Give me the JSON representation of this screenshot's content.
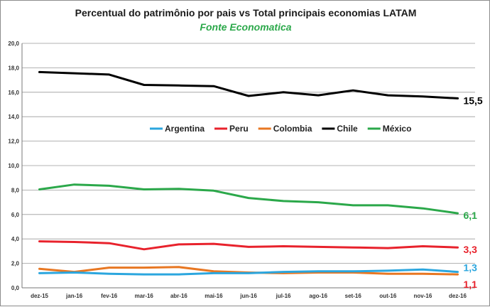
{
  "chart_data": {
    "type": "line",
    "title": "Percentual do patrimônio por pais vs Total  principais economias LATAM",
    "subtitle": "Fonte Economatica",
    "xlabel": "",
    "ylabel": "",
    "categories": [
      "dez-15",
      "jan-16",
      "fev-16",
      "mar-16",
      "abr-16",
      "mai-16",
      "jun-16",
      "jul-16",
      "ago-16",
      "set-16",
      "out-16",
      "nov-16",
      "dez-16"
    ],
    "ylim": [
      0,
      20
    ],
    "yticks": [
      "0,0",
      "2,0",
      "4,0",
      "6,0",
      "8,0",
      "10,0",
      "12,0",
      "14,0",
      "16,0",
      "18,0",
      "20,0"
    ],
    "grid": true,
    "legend_position": "center",
    "series": [
      {
        "name": "Argentina",
        "color": "#2ba6de",
        "values": [
          1.2,
          1.25,
          1.15,
          1.1,
          1.1,
          1.2,
          1.2,
          1.3,
          1.35,
          1.35,
          1.4,
          1.5,
          1.3
        ],
        "end_label": "1,3"
      },
      {
        "name": "Peru",
        "color": "#e8222c",
        "values": [
          3.8,
          3.75,
          3.65,
          3.15,
          3.55,
          3.6,
          3.35,
          3.4,
          3.35,
          3.3,
          3.25,
          3.4,
          3.3
        ],
        "end_label": "3,3"
      },
      {
        "name": "Colombia",
        "color": "#e87722",
        "values": [
          1.55,
          1.3,
          1.65,
          1.65,
          1.7,
          1.35,
          1.25,
          1.2,
          1.25,
          1.25,
          1.15,
          1.15,
          1.1
        ],
        "end_label": "1,1"
      },
      {
        "name": "Chile",
        "color": "#000000",
        "values": [
          17.65,
          17.55,
          17.45,
          16.6,
          16.55,
          16.5,
          15.7,
          16.0,
          15.75,
          16.15,
          15.75,
          15.65,
          15.5
        ],
        "end_label": "15,5"
      },
      {
        "name": "México",
        "color": "#2ba84a",
        "values": [
          8.05,
          8.45,
          8.35,
          8.05,
          8.1,
          7.95,
          7.35,
          7.1,
          7.0,
          6.75,
          6.75,
          6.5,
          6.1
        ],
        "end_label": "6,1"
      }
    ],
    "end_label_colors": {
      "Argentina": "#2ba6de",
      "Peru": "#e8222c",
      "Colombia": "#e8222c",
      "Chile": "#000000",
      "México": "#2ba84a"
    },
    "subtitle_color": "#2ba84a"
  }
}
